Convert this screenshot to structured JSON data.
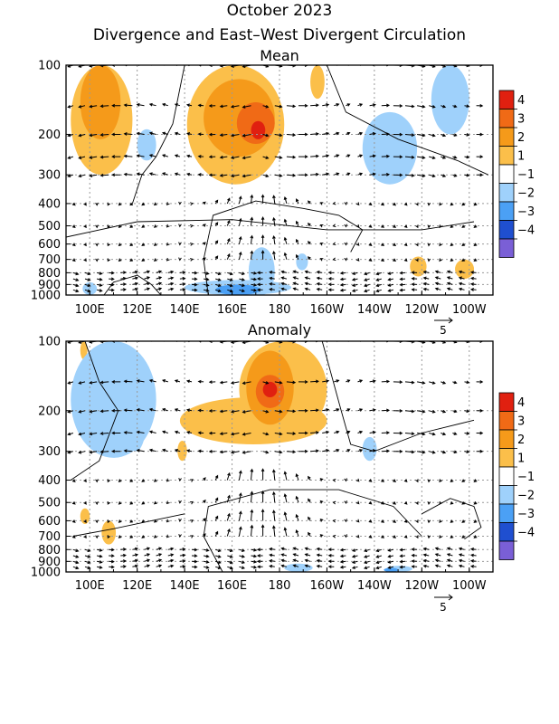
{
  "page": {
    "title": "October 2023",
    "subtitle": "Divergence and East–West Divergent Circulation"
  },
  "colors": {
    "neg4": "#7a5fd6",
    "neg3": "#1f4fd0",
    "neg2": "#4ba0f5",
    "neg1": "#9fd1fb",
    "zero": "#ffffff",
    "pos1": "#fbbf4a",
    "pos2": "#f59a1a",
    "pos3": "#f06a16",
    "pos4": "#e02010",
    "contour": "#000000",
    "vector": "#000000"
  },
  "chart_data": [
    {
      "type": "heatmap",
      "title": "Mean",
      "x_ticks": [
        "100E",
        "120E",
        "140E",
        "160E",
        "180",
        "160W",
        "140W",
        "120W",
        "100W"
      ],
      "x_tick_positions_deg_east": [
        100,
        120,
        140,
        160,
        180,
        200,
        220,
        240,
        260
      ],
      "xlim_deg_east": [
        90,
        270
      ],
      "y_ticks": [
        "100",
        "200",
        "300",
        "400",
        "500",
        "600",
        "700",
        "800",
        "900",
        "1000"
      ],
      "y_tick_values_hPa": [
        100,
        200,
        300,
        400,
        500,
        600,
        700,
        800,
        900,
        1000
      ],
      "ylim_hPa": [
        1000,
        100
      ],
      "y_scale": "log",
      "colorbar_levels": [
        "4",
        "3",
        "2",
        "1",
        "−1",
        "−2",
        "−3",
        "−4"
      ],
      "vector_reference": "5",
      "regions": [
        {
          "lon": [
            92,
            118
          ],
          "p": [
            100,
            300
          ],
          "level": 1
        },
        {
          "lon": [
            96,
            113
          ],
          "p": [
            100,
            210
          ],
          "level": 2
        },
        {
          "lon": [
            141,
            182
          ],
          "p": [
            100,
            330
          ],
          "level": 1
        },
        {
          "lon": [
            148,
            178
          ],
          "p": [
            115,
            250
          ],
          "level": 2
        },
        {
          "lon": [
            162,
            178
          ],
          "p": [
            145,
            220
          ],
          "level": 3
        },
        {
          "lon": [
            168,
            174
          ],
          "p": [
            175,
            210
          ],
          "level": 4
        },
        {
          "lon": [
            193,
            199
          ],
          "p": [
            100,
            140
          ],
          "level": 1
        },
        {
          "lon": [
            120,
            128
          ],
          "p": [
            190,
            260
          ],
          "level": -1
        },
        {
          "lon": [
            215,
            238
          ],
          "p": [
            160,
            330
          ],
          "level": -1
        },
        {
          "lon": [
            244,
            260
          ],
          "p": [
            100,
            200
          ],
          "level": -1
        },
        {
          "lon": [
            167,
            178
          ],
          "p": [
            620,
            1000
          ],
          "level": -1
        },
        {
          "lon": [
            140,
            185
          ],
          "p": [
            860,
            1000
          ],
          "level": -1
        },
        {
          "lon": [
            153,
            172
          ],
          "p": [
            900,
            1000
          ],
          "level": -2
        },
        {
          "lon": [
            97,
            103
          ],
          "p": [
            880,
            1000
          ],
          "level": -1
        },
        {
          "lon": [
            187,
            192
          ],
          "p": [
            660,
            780
          ],
          "level": -1
        },
        {
          "lon": [
            235,
            242
          ],
          "p": [
            680,
            830
          ],
          "level": 1
        },
        {
          "lon": [
            254,
            262
          ],
          "p": [
            700,
            850
          ],
          "level": 1
        }
      ]
    },
    {
      "type": "heatmap",
      "title": "Anomaly",
      "x_ticks": [
        "100E",
        "120E",
        "140E",
        "160E",
        "180",
        "160W",
        "140W",
        "120W",
        "100W"
      ],
      "x_tick_positions_deg_east": [
        100,
        120,
        140,
        160,
        180,
        200,
        220,
        240,
        260
      ],
      "xlim_deg_east": [
        90,
        270
      ],
      "y_ticks": [
        "100",
        "200",
        "300",
        "400",
        "500",
        "600",
        "700",
        "800",
        "900",
        "1000"
      ],
      "y_tick_values_hPa": [
        100,
        200,
        300,
        400,
        500,
        600,
        700,
        800,
        900,
        1000
      ],
      "ylim_hPa": [
        1000,
        100
      ],
      "y_scale": "log",
      "colorbar_levels": [
        "4",
        "3",
        "2",
        "1",
        "−1",
        "−2",
        "−3",
        "−4"
      ],
      "vector_reference": "5",
      "regions": [
        {
          "lon": [
            163,
            200
          ],
          "p": [
            100,
            260
          ],
          "level": 1
        },
        {
          "lon": [
            138,
            200
          ],
          "p": [
            175,
            280
          ],
          "level": 1
        },
        {
          "lon": [
            166,
            186
          ],
          "p": [
            110,
            230
          ],
          "level": 2
        },
        {
          "lon": [
            170,
            182
          ],
          "p": [
            140,
            195
          ],
          "level": 3
        },
        {
          "lon": [
            173,
            179
          ],
          "p": [
            150,
            175
          ],
          "level": 4
        },
        {
          "lon": [
            137,
            141
          ],
          "p": [
            270,
            330
          ],
          "level": 1
        },
        {
          "lon": [
            96,
            99
          ],
          "p": [
            100,
            120
          ],
          "level": 1
        },
        {
          "lon": [
            96,
            100
          ],
          "p": [
            530,
            620
          ],
          "level": 1
        },
        {
          "lon": [
            105,
            111
          ],
          "p": [
            600,
            760
          ],
          "level": 1
        },
        {
          "lon": [
            92,
            128
          ],
          "p": [
            100,
            320
          ],
          "level": -1
        },
        {
          "lon": [
            115,
            124
          ],
          "p": [
            150,
            300
          ],
          "level": -1
        },
        {
          "lon": [
            215,
            221
          ],
          "p": [
            260,
            330
          ],
          "level": -1
        },
        {
          "lon": [
            182,
            194
          ],
          "p": [
            920,
            1000
          ],
          "level": -1
        },
        {
          "lon": [
            225,
            236
          ],
          "p": [
            940,
            1000
          ],
          "level": -1
        },
        {
          "lon": [
            224,
            230
          ],
          "p": [
            960,
            1000
          ],
          "level": -2
        }
      ]
    }
  ]
}
